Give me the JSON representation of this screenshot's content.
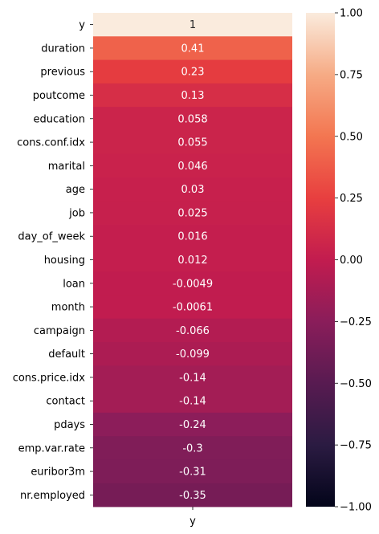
{
  "chart_data": {
    "type": "heatmap",
    "x_categories": [
      "y"
    ],
    "y_categories": [
      "y",
      "duration",
      "previous",
      "poutcome",
      "education",
      "cons.conf.idx",
      "marital",
      "age",
      "job",
      "day_of_week",
      "housing",
      "loan",
      "month",
      "campaign",
      "default",
      "cons.price.idx",
      "contact",
      "pdays",
      "emp.var.rate",
      "euribor3m",
      "nr.employed"
    ],
    "values": [
      1,
      0.41,
      0.23,
      0.13,
      0.058,
      0.055,
      0.046,
      0.03,
      0.025,
      0.016,
      0.012,
      -0.0049,
      -0.0061,
      -0.066,
      -0.099,
      -0.14,
      -0.14,
      -0.24,
      -0.3,
      -0.31,
      -0.35
    ],
    "value_labels": [
      "1",
      "0.41",
      "0.23",
      "0.13",
      "0.058",
      "0.055",
      "0.046",
      "0.03",
      "0.025",
      "0.016",
      "0.012",
      "-0.0049",
      "-0.0061",
      "-0.066",
      "-0.099",
      "-0.14",
      "-0.14",
      "-0.24",
      "-0.3",
      "-0.31",
      "-0.35"
    ],
    "vmin": -1,
    "vmax": 1,
    "colormap": "rocket",
    "colorbar_ticks": [
      1.0,
      0.75,
      0.5,
      0.25,
      0.0,
      -0.25,
      -0.5,
      -0.75,
      -1.0
    ],
    "colorbar_tick_labels": [
      "1.00",
      "0.75",
      "0.50",
      "0.25",
      "0.00",
      "−0.25",
      "−0.50",
      "−0.75",
      "−1.00"
    ]
  }
}
